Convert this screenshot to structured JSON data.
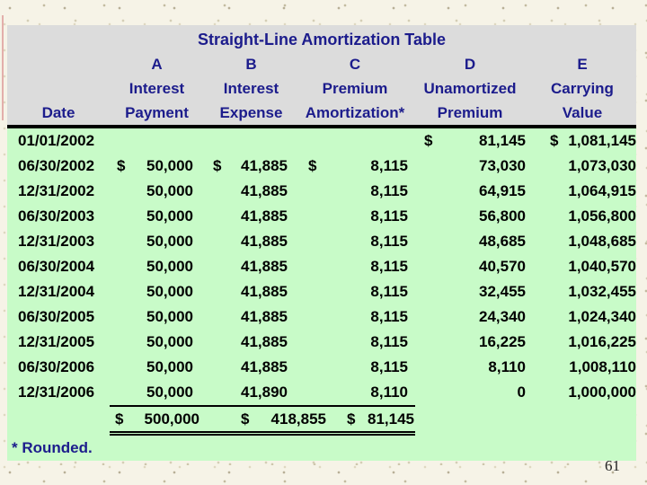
{
  "slide": {
    "footnote": "* Rounded.",
    "page_number": "61"
  },
  "table": {
    "title": "Straight-Line Amortization Table",
    "columns": [
      {
        "letter": "",
        "line1": "",
        "line2": "Date"
      },
      {
        "letter": "A",
        "line1": "Interest",
        "line2": "Payment"
      },
      {
        "letter": "B",
        "line1": "Interest",
        "line2": "Expense"
      },
      {
        "letter": "C",
        "line1": "Premium",
        "line2": "Amortization*"
      },
      {
        "letter": "D",
        "line1": "Unamortized",
        "line2": "Premium"
      },
      {
        "letter": "E",
        "line1": "Carrying",
        "line2": "Value"
      }
    ],
    "rows": [
      {
        "date": "01/01/2002",
        "a_sign": "",
        "a": "",
        "b_sign": "",
        "b": "",
        "c_sign": "",
        "c": "",
        "d_sign": "$",
        "d": "81,145",
        "e_sign": "$",
        "e": "1,081,145"
      },
      {
        "date": "06/30/2002",
        "a_sign": "$",
        "a": "50,000",
        "b_sign": "$",
        "b": "41,885",
        "c_sign": "$",
        "c": "8,115",
        "d_sign": "",
        "d": "73,030",
        "e_sign": "",
        "e": "1,073,030"
      },
      {
        "date": "12/31/2002",
        "a_sign": "",
        "a": "50,000",
        "b_sign": "",
        "b": "41,885",
        "c_sign": "",
        "c": "8,115",
        "d_sign": "",
        "d": "64,915",
        "e_sign": "",
        "e": "1,064,915"
      },
      {
        "date": "06/30/2003",
        "a_sign": "",
        "a": "50,000",
        "b_sign": "",
        "b": "41,885",
        "c_sign": "",
        "c": "8,115",
        "d_sign": "",
        "d": "56,800",
        "e_sign": "",
        "e": "1,056,800"
      },
      {
        "date": "12/31/2003",
        "a_sign": "",
        "a": "50,000",
        "b_sign": "",
        "b": "41,885",
        "c_sign": "",
        "c": "8,115",
        "d_sign": "",
        "d": "48,685",
        "e_sign": "",
        "e": "1,048,685"
      },
      {
        "date": "06/30/2004",
        "a_sign": "",
        "a": "50,000",
        "b_sign": "",
        "b": "41,885",
        "c_sign": "",
        "c": "8,115",
        "d_sign": "",
        "d": "40,570",
        "e_sign": "",
        "e": "1,040,570"
      },
      {
        "date": "12/31/2004",
        "a_sign": "",
        "a": "50,000",
        "b_sign": "",
        "b": "41,885",
        "c_sign": "",
        "c": "8,115",
        "d_sign": "",
        "d": "32,455",
        "e_sign": "",
        "e": "1,032,455"
      },
      {
        "date": "06/30/2005",
        "a_sign": "",
        "a": "50,000",
        "b_sign": "",
        "b": "41,885",
        "c_sign": "",
        "c": "8,115",
        "d_sign": "",
        "d": "24,340",
        "e_sign": "",
        "e": "1,024,340"
      },
      {
        "date": "12/31/2005",
        "a_sign": "",
        "a": "50,000",
        "b_sign": "",
        "b": "41,885",
        "c_sign": "",
        "c": "8,115",
        "d_sign": "",
        "d": "16,225",
        "e_sign": "",
        "e": "1,016,225"
      },
      {
        "date": "06/30/2006",
        "a_sign": "",
        "a": "50,000",
        "b_sign": "",
        "b": "41,885",
        "c_sign": "",
        "c": "8,115",
        "d_sign": "",
        "d": "8,110",
        "e_sign": "",
        "e": "1,008,110"
      },
      {
        "date": "12/31/2006",
        "a_sign": "",
        "a": "50,000",
        "b_sign": "",
        "b": "41,890",
        "c_sign": "",
        "c": "8,110",
        "d_sign": "",
        "d": "0",
        "e_sign": "",
        "e": "1,000,000"
      }
    ],
    "totals": {
      "a_sign": "$",
      "a": "500,000",
      "b_sign": "$",
      "b": "418,855",
      "c_sign": "$",
      "c": "81,145"
    }
  },
  "colors": {
    "background": "#f6f3e7",
    "header_bg": "#dcdcdc",
    "body_bg": "#c8fbc8",
    "heading_text": "#1c1c8c",
    "body_text": "#000000",
    "rule": "#000000",
    "edge_accent": "#d98a8a"
  }
}
